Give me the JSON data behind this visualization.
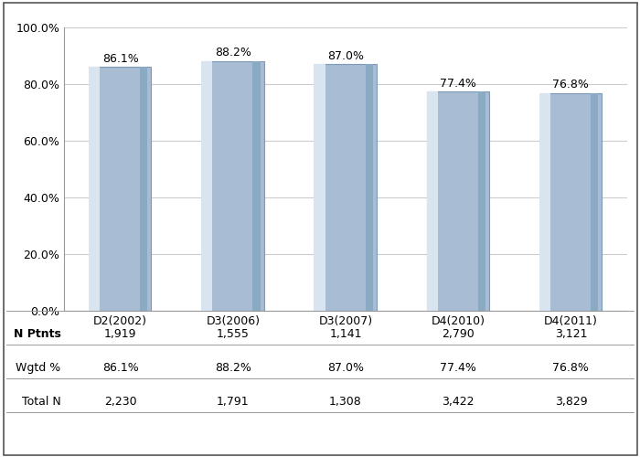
{
  "categories": [
    "D2(2002)",
    "D3(2006)",
    "D3(2007)",
    "D4(2010)",
    "D4(2011)"
  ],
  "values": [
    86.1,
    88.2,
    87.0,
    77.4,
    76.8
  ],
  "bar_color_main": "#a8bcd4",
  "bar_color_light": "#d8e4f0",
  "bar_color_dark": "#8aaac4",
  "bar_edge_color": "#7a9ab8",
  "ylim": [
    0,
    100
  ],
  "yticks": [
    0,
    20,
    40,
    60,
    80,
    100
  ],
  "ytick_labels": [
    "0.0%",
    "20.0%",
    "40.0%",
    "60.0%",
    "80.0%",
    "100.0%"
  ],
  "value_labels": [
    "86.1%",
    "88.2%",
    "87.0%",
    "77.4%",
    "76.8%"
  ],
  "table_row_labels": [
    "N Ptnts",
    "Wgtd %",
    "Total N"
  ],
  "table_data": [
    [
      "1,919",
      "1,555",
      "1,141",
      "2,790",
      "3,121"
    ],
    [
      "86.1%",
      "88.2%",
      "87.0%",
      "77.4%",
      "76.8%"
    ],
    [
      "2,230",
      "1,791",
      "1,308",
      "3,422",
      "3,829"
    ]
  ],
  "background_color": "#ffffff",
  "grid_color": "#cccccc",
  "font_size_labels": 9,
  "font_size_values": 9,
  "font_size_table": 9
}
